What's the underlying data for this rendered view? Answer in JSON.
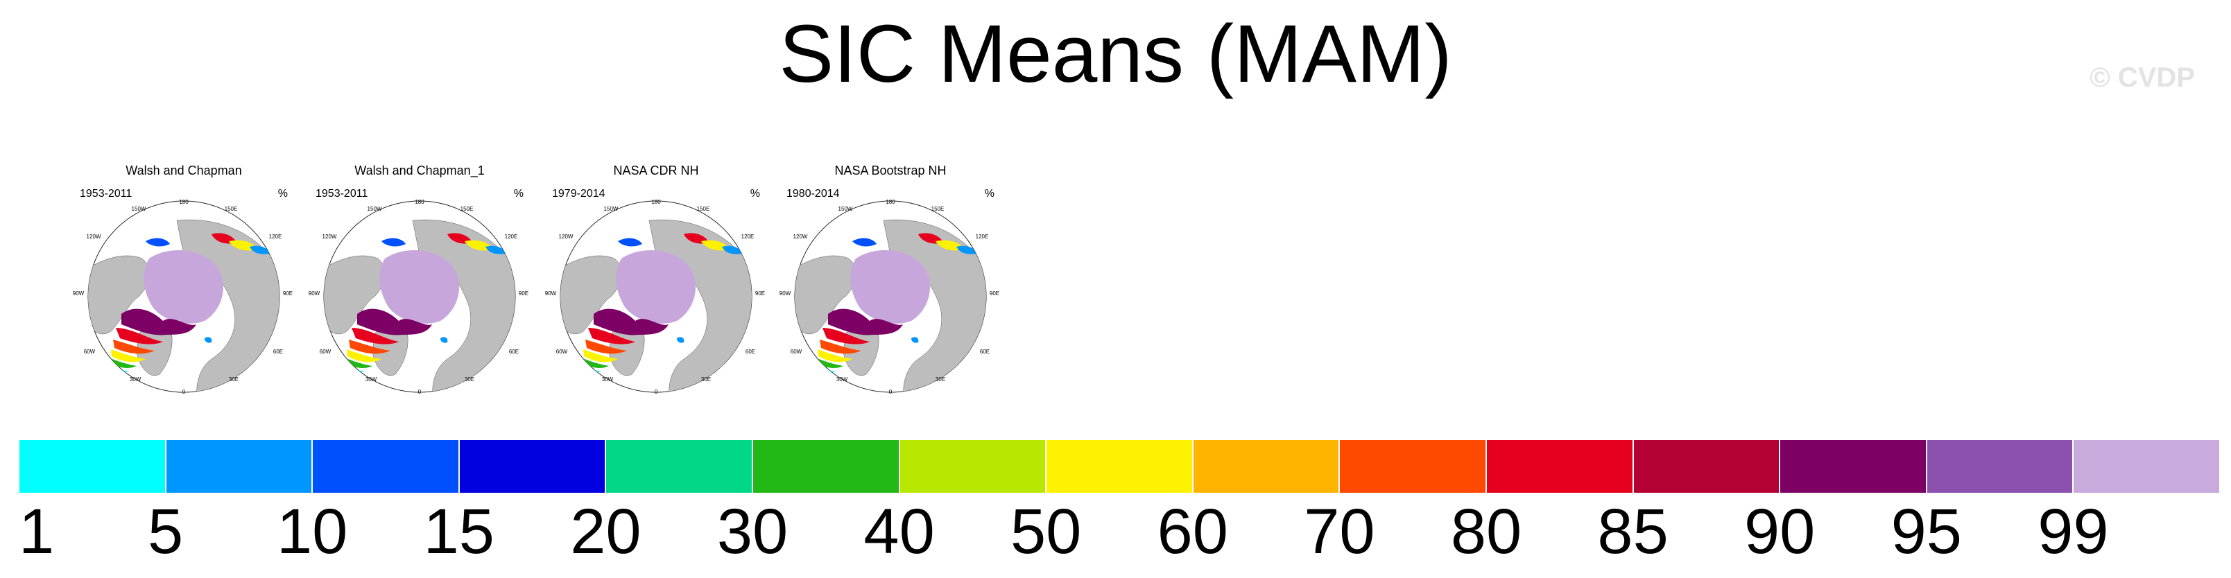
{
  "title": "SIC Means (MAM)",
  "watermark": "© CVDP",
  "unit": "%",
  "panels": [
    {
      "title": "Walsh and Chapman",
      "period": "1953-2011"
    },
    {
      "title": "Walsh and Chapman_1",
      "period": "1953-2011"
    },
    {
      "title": "NASA CDR NH",
      "period": "1979-2014"
    },
    {
      "title": "NASA Bootstrap NH",
      "period": "1980-2014"
    }
  ],
  "map_labels": {
    "lon": [
      "180",
      "150W",
      "150E",
      "120W",
      "120E",
      "90W",
      "90E",
      "60W",
      "60E",
      "30W",
      "30E",
      "0"
    ]
  },
  "colorbar": {
    "colors": [
      "#00ffff",
      "#0096ff",
      "#0050ff",
      "#0000e0",
      "#00d787",
      "#22b815",
      "#b9e800",
      "#fff200",
      "#ffb400",
      "#ff4800",
      "#e6001e",
      "#b40032",
      "#7d0064",
      "#8c50af",
      "#c8aadc"
    ],
    "labels": [
      "1",
      "5",
      "10",
      "15",
      "20",
      "30",
      "40",
      "50",
      "60",
      "70",
      "80",
      "85",
      "90",
      "95",
      "99"
    ]
  },
  "colors": {
    "land": "#bdbdbd",
    "ice_core": "#c7a6dc"
  }
}
